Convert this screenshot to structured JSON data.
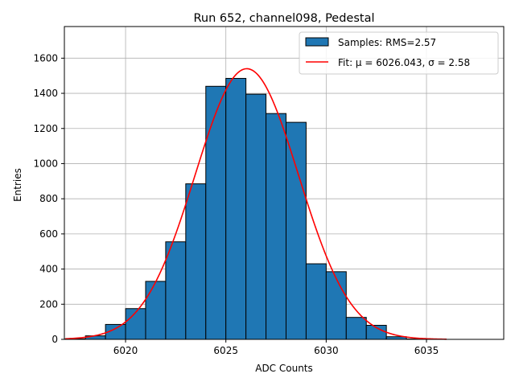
{
  "chart_data": {
    "type": "bar",
    "title": "Run 652, channel098, Pedestal",
    "xlabel": "ADC Counts",
    "ylabel": "Entries",
    "xlim": [
      6016.95,
      6038.85
    ],
    "ylim": [
      0,
      1780
    ],
    "xticks": [
      6020,
      6025,
      6030,
      6035
    ],
    "yticks": [
      0,
      200,
      400,
      600,
      800,
      1000,
      1200,
      1400,
      1600
    ],
    "grid": true,
    "legend_position": "top-right",
    "bin_width": 1,
    "bins": [
      {
        "left": 6017,
        "value": 3
      },
      {
        "left": 6018,
        "value": 20
      },
      {
        "left": 6019,
        "value": 85
      },
      {
        "left": 6020,
        "value": 175
      },
      {
        "left": 6021,
        "value": 330
      },
      {
        "left": 6022,
        "value": 555
      },
      {
        "left": 6023,
        "value": 885
      },
      {
        "left": 6024,
        "value": 1440
      },
      {
        "left": 6025,
        "value": 1485
      },
      {
        "left": 6026,
        "value": 1395
      },
      {
        "left": 6027,
        "value": 1285
      },
      {
        "left": 6028,
        "value": 1235
      },
      {
        "left": 6029,
        "value": 430
      },
      {
        "left": 6030,
        "value": 385
      },
      {
        "left": 6031,
        "value": 125
      },
      {
        "left": 6032,
        "value": 80
      },
      {
        "left": 6033,
        "value": 15
      },
      {
        "left": 6034,
        "value": 2
      }
    ],
    "fit": {
      "mu": 6026.043,
      "sigma": 2.58,
      "amplitude": 1540,
      "x_range": [
        6017,
        6036
      ]
    },
    "series": [
      {
        "name": "Samples: RMS=2.57",
        "kind": "histogram",
        "color": "#1f77b4"
      },
      {
        "name": "Fit: μ = 6026.043, σ = 2.58",
        "kind": "line",
        "color": "#ff0000"
      }
    ]
  }
}
